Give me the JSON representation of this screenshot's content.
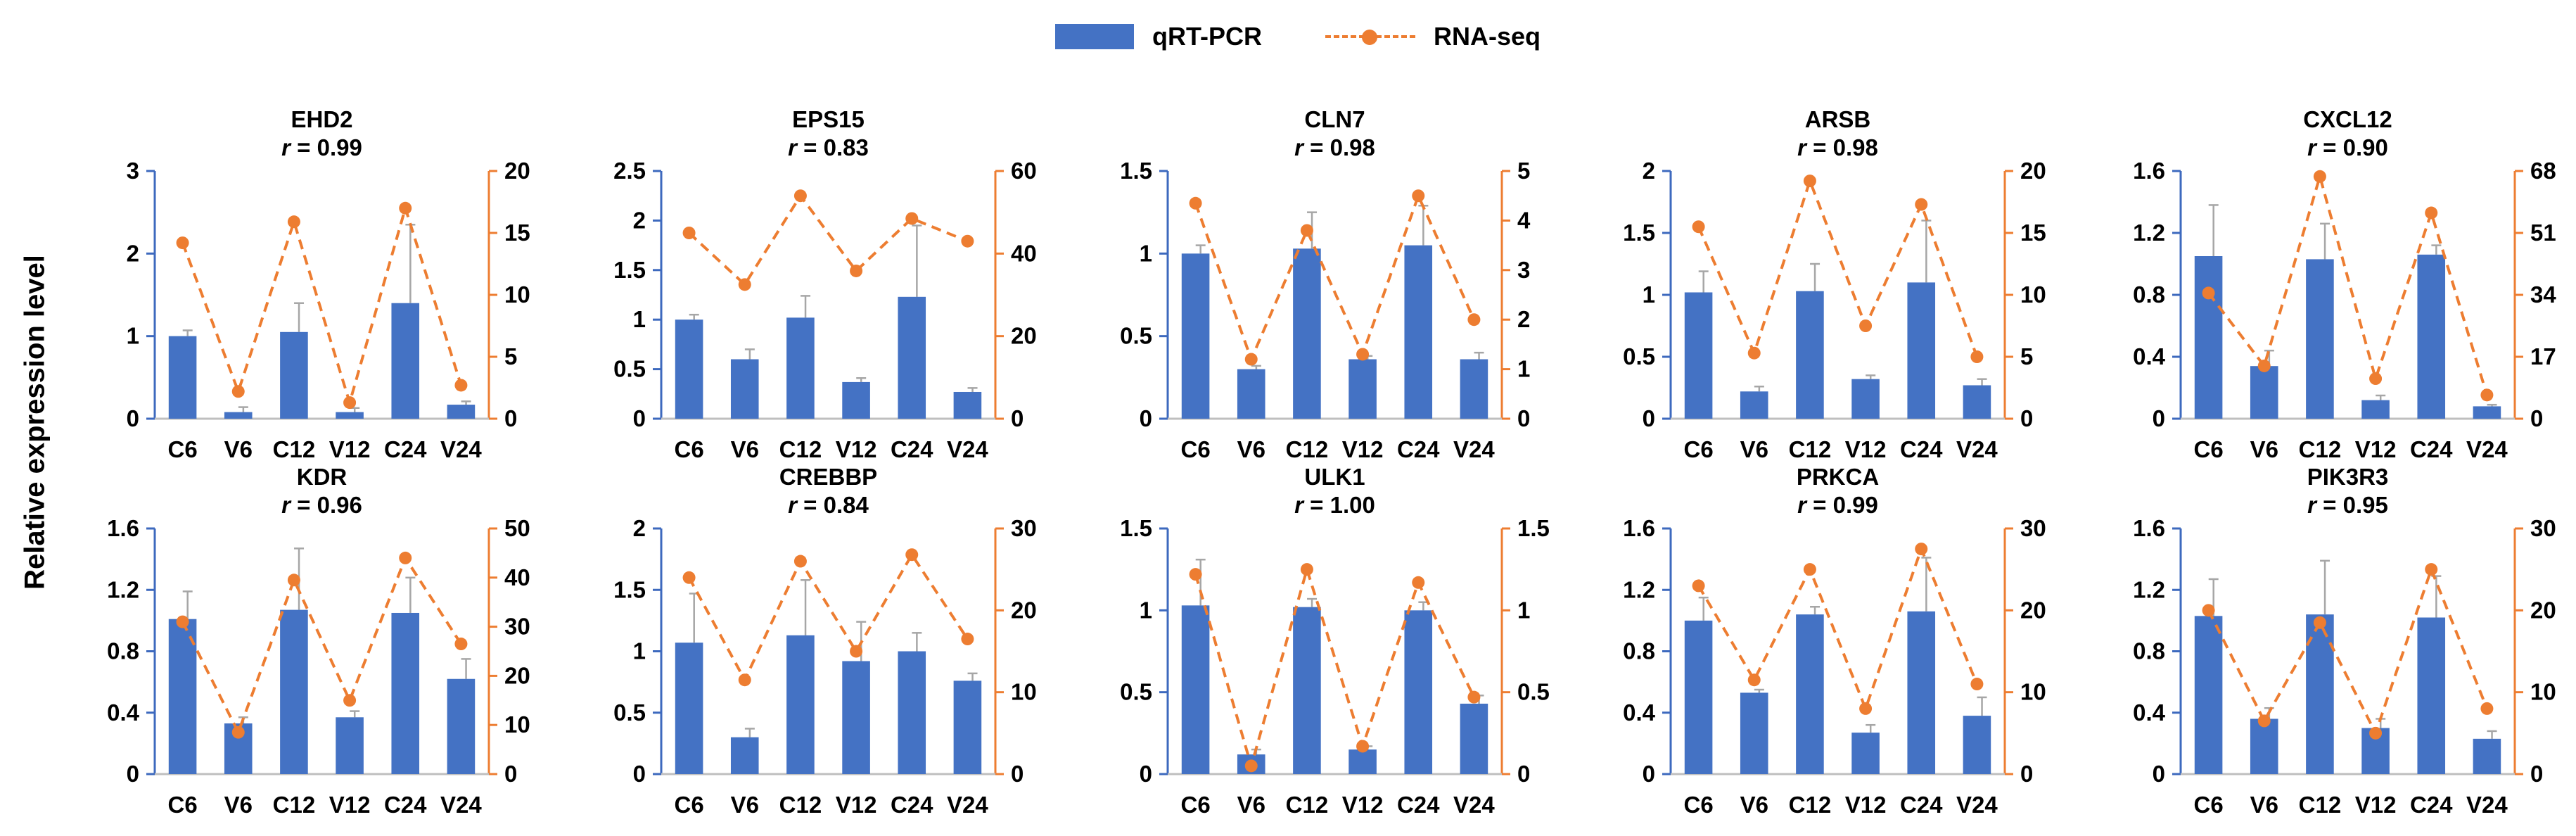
{
  "legend": {
    "bar_label": "qRT-PCR",
    "line_label": "RNA-seq"
  },
  "ylabel": "Relative expression level",
  "colors": {
    "bar": "#4472C4",
    "line": "#ED7D31",
    "axis_left": "#3D69BE",
    "axis_right": "#ED7D31",
    "error_bar": "#A6A6A6"
  },
  "chart_data": [
    {
      "type": "bar+line",
      "title": "EHD2",
      "r_label": "r",
      "r_value": "= 0.99",
      "categories": [
        "C6",
        "V6",
        "C12",
        "V12",
        "C24",
        "V24"
      ],
      "y_ticks": [
        "0",
        "1",
        "2",
        "3"
      ],
      "ylim": [
        0,
        3
      ],
      "y2_ticks": [
        "0",
        "5",
        "10",
        "15",
        "20"
      ],
      "y2lim": [
        0,
        20
      ],
      "series": [
        {
          "name": "qRT-PCR",
          "axis": "left",
          "values": [
            1.0,
            0.08,
            1.05,
            0.08,
            1.4,
            0.17
          ],
          "errors": [
            0.07,
            0.06,
            0.35,
            0.05,
            0.95,
            0.04
          ]
        },
        {
          "name": "RNA-seq",
          "axis": "right",
          "values": [
            14.2,
            2.2,
            15.9,
            1.3,
            17.0,
            2.7
          ]
        }
      ]
    },
    {
      "type": "bar+line",
      "title": "EPS15",
      "r_label": "r",
      "r_value": "= 0.83",
      "categories": [
        "C6",
        "V6",
        "C12",
        "V12",
        "C24",
        "V24"
      ],
      "y_ticks": [
        "0",
        "0.5",
        "1",
        "1.5",
        "2",
        "2.5"
      ],
      "ylim": [
        0,
        2.5
      ],
      "y2_ticks": [
        "0",
        "20",
        "40",
        "60"
      ],
      "y2lim": [
        0,
        60
      ],
      "series": [
        {
          "name": "qRT-PCR",
          "axis": "left",
          "values": [
            1.0,
            0.6,
            1.02,
            0.37,
            1.23,
            0.27
          ],
          "errors": [
            0.05,
            0.1,
            0.22,
            0.04,
            0.72,
            0.04
          ]
        },
        {
          "name": "RNA-seq",
          "axis": "right",
          "values": [
            45.0,
            32.5,
            54.0,
            35.8,
            48.5,
            43.0
          ]
        }
      ]
    },
    {
      "type": "bar+line",
      "title": "CLN7",
      "r_label": "r",
      "r_value": "= 0.98",
      "categories": [
        "C6",
        "V6",
        "C12",
        "V12",
        "C24",
        "V24"
      ],
      "y_ticks": [
        "0",
        "0.5",
        "1",
        "1.5"
      ],
      "ylim": [
        0,
        1.5
      ],
      "y2_ticks": [
        "0",
        "1",
        "2",
        "3",
        "4",
        "5"
      ],
      "y2lim": [
        0,
        5
      ],
      "series": [
        {
          "name": "qRT-PCR",
          "axis": "left",
          "values": [
            1.0,
            0.3,
            1.03,
            0.36,
            1.05,
            0.36
          ],
          "errors": [
            0.05,
            0.02,
            0.22,
            0.02,
            0.24,
            0.04
          ]
        },
        {
          "name": "RNA-seq",
          "axis": "right",
          "values": [
            4.35,
            1.2,
            3.8,
            1.3,
            4.5,
            2.0
          ]
        }
      ]
    },
    {
      "type": "bar+line",
      "title": "ARSB",
      "r_label": "r",
      "r_value": "= 0.98",
      "categories": [
        "C6",
        "V6",
        "C12",
        "V12",
        "C24",
        "V24"
      ],
      "y_ticks": [
        "0",
        "0.5",
        "1",
        "1.5",
        "2"
      ],
      "ylim": [
        0,
        2
      ],
      "y2_ticks": [
        "0",
        "5",
        "10",
        "15",
        "20"
      ],
      "y2lim": [
        0,
        20
      ],
      "series": [
        {
          "name": "qRT-PCR",
          "axis": "left",
          "values": [
            1.02,
            0.22,
            1.03,
            0.32,
            1.1,
            0.27
          ],
          "errors": [
            0.17,
            0.04,
            0.22,
            0.03,
            0.5,
            0.05
          ]
        },
        {
          "name": "RNA-seq",
          "axis": "right",
          "values": [
            15.5,
            5.3,
            19.2,
            7.5,
            17.3,
            5.0
          ]
        }
      ]
    },
    {
      "type": "bar+line",
      "title": "CXCL12",
      "r_label": "r",
      "r_value": "= 0.90",
      "categories": [
        "C6",
        "V6",
        "C12",
        "V12",
        "C24",
        "V24"
      ],
      "y_ticks": [
        "0",
        "0.4",
        "0.8",
        "1.2",
        "1.6"
      ],
      "ylim": [
        0,
        1.6
      ],
      "y2_ticks": [
        "0",
        "17",
        "34",
        "51",
        "68"
      ],
      "y2lim": [
        0,
        68
      ],
      "series": [
        {
          "name": "qRT-PCR",
          "axis": "left",
          "values": [
            1.05,
            0.34,
            1.03,
            0.12,
            1.06,
            0.08
          ],
          "errors": [
            0.33,
            0.1,
            0.23,
            0.03,
            0.06,
            0.01
          ]
        },
        {
          "name": "RNA-seq",
          "axis": "right",
          "values": [
            34.5,
            14.5,
            66.5,
            11.0,
            56.5,
            6.5
          ]
        }
      ]
    },
    {
      "type": "bar+line",
      "title": "KDR",
      "r_label": "r",
      "r_value": "= 0.96",
      "categories": [
        "C6",
        "V6",
        "C12",
        "V12",
        "C24",
        "V24"
      ],
      "y_ticks": [
        "0",
        "0.4",
        "0.8",
        "1.2",
        "1.6"
      ],
      "ylim": [
        0,
        1.6
      ],
      "y2_ticks": [
        "0",
        "10",
        "20",
        "30",
        "40",
        "50"
      ],
      "y2lim": [
        0,
        50
      ],
      "series": [
        {
          "name": "qRT-PCR",
          "axis": "left",
          "values": [
            1.01,
            0.33,
            1.07,
            0.37,
            1.05,
            0.62
          ],
          "errors": [
            0.18,
            0.04,
            0.4,
            0.04,
            0.23,
            0.13
          ]
        },
        {
          "name": "RNA-seq",
          "axis": "right",
          "values": [
            31.0,
            8.5,
            39.5,
            15.0,
            44.0,
            26.5
          ]
        }
      ]
    },
    {
      "type": "bar+line",
      "title": "CREBBP",
      "r_label": "r",
      "r_value": "= 0.84",
      "categories": [
        "C6",
        "V6",
        "C12",
        "V12",
        "C24",
        "V24"
      ],
      "y_ticks": [
        "0",
        "0.5",
        "1",
        "1.5",
        "2"
      ],
      "ylim": [
        0,
        2
      ],
      "y2_ticks": [
        "0",
        "10",
        "20",
        "30"
      ],
      "y2lim": [
        0,
        30
      ],
      "series": [
        {
          "name": "qRT-PCR",
          "axis": "left",
          "values": [
            1.07,
            0.3,
            1.13,
            0.92,
            1.0,
            0.76
          ],
          "errors": [
            0.4,
            0.07,
            0.45,
            0.32,
            0.15,
            0.06
          ]
        },
        {
          "name": "RNA-seq",
          "axis": "right",
          "values": [
            24.0,
            11.5,
            26.0,
            15.0,
            26.8,
            16.5
          ]
        }
      ]
    },
    {
      "type": "bar+line",
      "title": "ULK1",
      "r_label": "r",
      "r_value": "= 1.00",
      "categories": [
        "C6",
        "V6",
        "C12",
        "V12",
        "C24",
        "V24"
      ],
      "y_ticks": [
        "0",
        "0.5",
        "1",
        "1.5"
      ],
      "ylim": [
        0,
        1.5
      ],
      "y2_ticks": [
        "0",
        "0.5",
        "1",
        "1.5"
      ],
      "y2lim": [
        0,
        1.5
      ],
      "series": [
        {
          "name": "qRT-PCR",
          "axis": "left",
          "values": [
            1.03,
            0.12,
            1.02,
            0.15,
            1.0,
            0.43
          ],
          "errors": [
            0.28,
            0.03,
            0.05,
            0.02,
            0.05,
            0.05
          ]
        },
        {
          "name": "RNA-seq",
          "axis": "right",
          "values": [
            1.22,
            0.05,
            1.25,
            0.17,
            1.17,
            0.47
          ]
        }
      ]
    },
    {
      "type": "bar+line",
      "title": "PRKCA",
      "r_label": "r",
      "r_value": "= 0.99",
      "categories": [
        "C6",
        "V6",
        "C12",
        "V12",
        "C24",
        "V24"
      ],
      "y_ticks": [
        "0",
        "0.4",
        "0.8",
        "1.2",
        "1.6"
      ],
      "ylim": [
        0,
        1.6
      ],
      "y2_ticks": [
        "0",
        "10",
        "20",
        "30"
      ],
      "y2lim": [
        0,
        30
      ],
      "series": [
        {
          "name": "qRT-PCR",
          "axis": "left",
          "values": [
            1.0,
            0.53,
            1.04,
            0.27,
            1.06,
            0.38
          ],
          "errors": [
            0.15,
            0.02,
            0.05,
            0.05,
            0.35,
            0.12
          ]
        },
        {
          "name": "RNA-seq",
          "axis": "right",
          "values": [
            23.0,
            11.5,
            25.0,
            8.0,
            27.5,
            11.0
          ]
        }
      ]
    },
    {
      "type": "bar+line",
      "title": "PIK3R3",
      "r_label": "r",
      "r_value": "= 0.95",
      "categories": [
        "C6",
        "V6",
        "C12",
        "V12",
        "C24",
        "V24"
      ],
      "y_ticks": [
        "0",
        "0.4",
        "0.8",
        "1.2",
        "1.6"
      ],
      "ylim": [
        0,
        1.6
      ],
      "y2_ticks": [
        "0",
        "10",
        "20",
        "30"
      ],
      "y2lim": [
        0,
        30
      ],
      "series": [
        {
          "name": "qRT-PCR",
          "axis": "left",
          "values": [
            1.03,
            0.36,
            1.04,
            0.3,
            1.02,
            0.23
          ],
          "errors": [
            0.24,
            0.07,
            0.35,
            0.06,
            0.27,
            0.05
          ]
        },
        {
          "name": "RNA-seq",
          "axis": "right",
          "values": [
            20.0,
            6.5,
            18.5,
            5.0,
            25.0,
            8.0
          ]
        }
      ]
    }
  ]
}
